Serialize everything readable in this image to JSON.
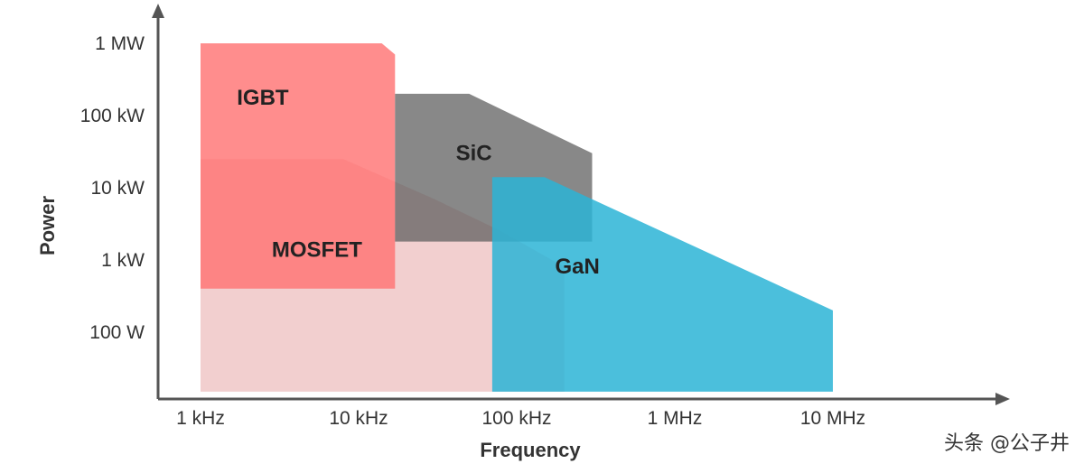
{
  "chart_data": {
    "type": "area",
    "xlabel": "Frequency",
    "ylabel": "Power",
    "x_scale": "log",
    "y_scale": "log",
    "x_ticks": [
      {
        "value": 1000,
        "label": "1 kHz"
      },
      {
        "value": 10000,
        "label": "10 kHz"
      },
      {
        "value": 100000,
        "label": "100 kHz"
      },
      {
        "value": 1000000,
        "label": "1 MHz"
      },
      {
        "value": 10000000,
        "label": "10 MHz"
      }
    ],
    "y_ticks": [
      {
        "value": 100,
        "label": "100 W"
      },
      {
        "value": 1000,
        "label": "1 kW"
      },
      {
        "value": 10000,
        "label": "10 kW"
      },
      {
        "value": 100000,
        "label": "100 kW"
      },
      {
        "value": 1000000,
        "label": "1 MW"
      }
    ],
    "regions": [
      {
        "name": "MOSFET",
        "color": "#e8a8a8",
        "opacity": 0.55,
        "boundary": [
          {
            "x": 1000,
            "y": 25000
          },
          {
            "x": 8000,
            "y": 25000
          },
          {
            "x": 30000,
            "y": 7000
          },
          {
            "x": 80000,
            "y": 2500
          },
          {
            "x": 200000,
            "y": 800
          },
          {
            "x": 200000,
            "y": 15
          },
          {
            "x": 1000,
            "y": 15
          }
        ]
      },
      {
        "name": "IGBT",
        "color": "#ff7070",
        "opacity": 0.8,
        "boundary": [
          {
            "x": 1000,
            "y": 1000000
          },
          {
            "x": 14000,
            "y": 1000000
          },
          {
            "x": 17000,
            "y": 700000
          },
          {
            "x": 17000,
            "y": 400
          },
          {
            "x": 1000,
            "y": 400
          }
        ]
      },
      {
        "name": "SiC",
        "color": "#606060",
        "opacity": 0.75,
        "boundary": [
          {
            "x": 17000,
            "y": 200000
          },
          {
            "x": 50000,
            "y": 200000
          },
          {
            "x": 300000,
            "y": 30000
          },
          {
            "x": 300000,
            "y": 1800
          },
          {
            "x": 17000,
            "y": 1800
          }
        ]
      },
      {
        "name": "GaN",
        "color": "#2cb4d6",
        "opacity": 0.85,
        "boundary": [
          {
            "x": 70000,
            "y": 14000
          },
          {
            "x": 150000,
            "y": 14000
          },
          {
            "x": 10000000,
            "y": 200
          },
          {
            "x": 10000000,
            "y": 15
          },
          {
            "x": 70000,
            "y": 15
          }
        ]
      }
    ]
  },
  "watermark": "头条 @公子井"
}
